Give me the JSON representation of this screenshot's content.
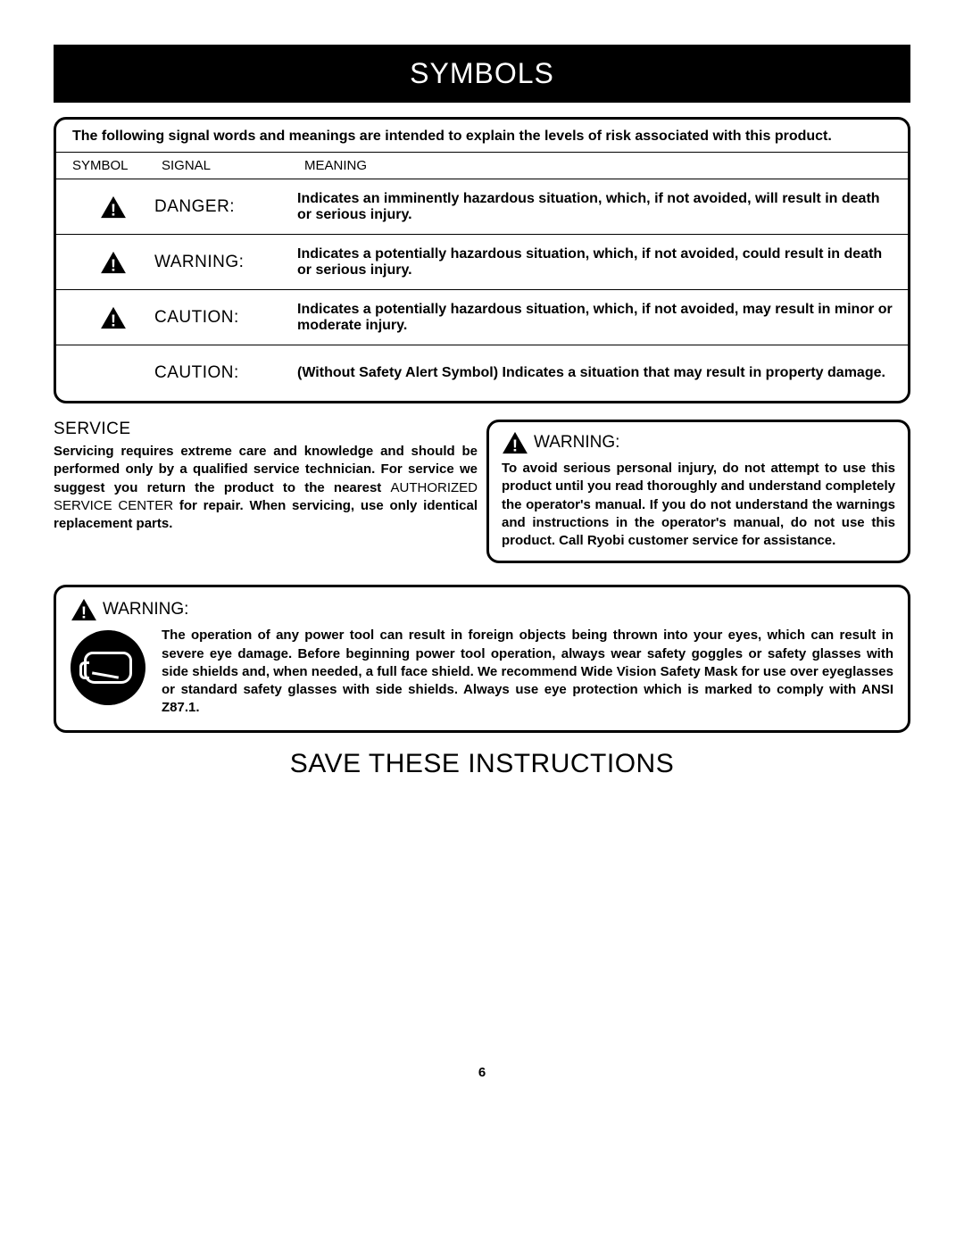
{
  "banner": "SYMBOLS",
  "table": {
    "intro": "The following signal words and meanings are intended to explain the levels of risk associated with this product.",
    "headers": {
      "symbol": "SYMBOL",
      "signal": "SIGNAL",
      "meaning": "MEANING"
    },
    "rows": [
      {
        "has_icon": true,
        "signal": "DANGER:",
        "meaning": "Indicates an imminently hazardous situation, which, if not avoided, will result in death or serious injury."
      },
      {
        "has_icon": true,
        "signal": "WARNING:",
        "meaning": "Indicates a potentially hazardous situation, which, if not avoided, could result in death or serious injury."
      },
      {
        "has_icon": true,
        "signal": "CAUTION:",
        "meaning": "Indicates a potentially hazardous situation, which, if not avoided, may result in minor or moderate injury."
      },
      {
        "has_icon": false,
        "signal": "CAUTION:",
        "meaning": "(Without Safety Alert Symbol) Indicates a situation that may result in property damage."
      }
    ]
  },
  "service": {
    "heading": "SERVICE",
    "text_pre": "Servicing requires extreme care and knowledge and should be performed only by a qualified service technician. For service we suggest you return the product to the nearest ",
    "text_caps": "AUTHORIZED SERVICE CENTER",
    "text_post": " for repair. When servicing, use only identical replacement parts."
  },
  "warning_box": {
    "title": "WARNING:",
    "text": "To avoid serious personal injury, do not attempt to use this product until you read thoroughly and understand completely the operator's manual. If you do not understand the warnings and instructions in the operator's manual, do not use this product. Call Ryobi customer service for assistance."
  },
  "wide_warning": {
    "title": "WARNING:",
    "text": "The operation of any power tool can result in foreign objects being thrown into your eyes, which can result in severe eye damage. Before beginning power tool operation, always wear safety goggles or safety glasses with side shields and, when needed, a full face shield. We recommend Wide Vision Safety Mask for use over eyeglasses or standard safety glasses with side shields. Always use eye protection which is marked to comply with ANSI Z87.1."
  },
  "save": "SAVE THESE INSTRUCTIONS",
  "page_number": "6",
  "colors": {
    "black": "#000000",
    "white": "#ffffff"
  }
}
